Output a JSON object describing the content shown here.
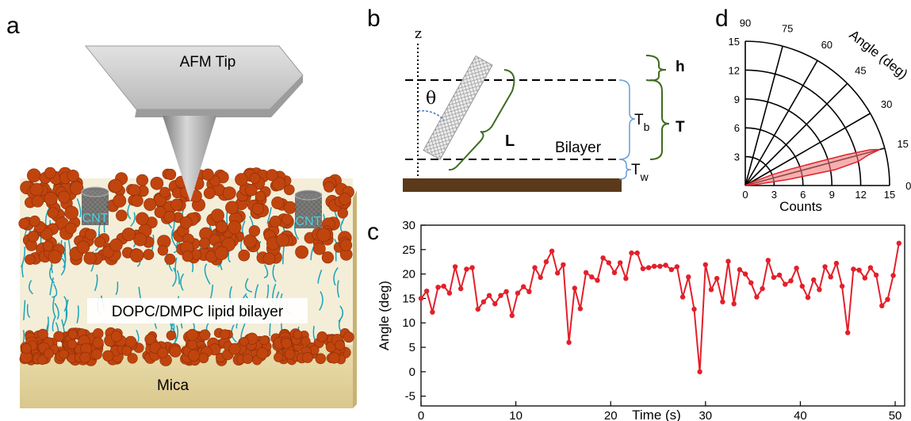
{
  "panel_a": {
    "letter": "a",
    "tip_label": "AFM Tip",
    "cnt_label_left": "CNT",
    "cnt_label_right": "CNT",
    "bilayer_label": "DOPC/DMPC lipid bilayer",
    "substrate_label": "Mica",
    "colors": {
      "headgroup": "#c0440e",
      "tail": "#1aa3b8",
      "mica": "#e6d7a3",
      "tip": "#a8a8a8"
    }
  },
  "panel_b": {
    "letter": "b",
    "z_label": "z",
    "theta_label": "θ",
    "L_label": "L",
    "bilayer_label": "Bilayer",
    "h_label": "h",
    "Tb_main": "T",
    "Tb_sub": "b",
    "T_label": "T",
    "Tw_main": "T",
    "Tw_sub": "w",
    "colors": {
      "substrate": "#5a3a1a",
      "bracket_green": "#3e6b1f",
      "bracket_blue": "#6a9bd8"
    }
  },
  "panel_c": {
    "letter": "c",
    "chart_data": {
      "type": "line",
      "xlabel": "Time (s)",
      "ylabel": "Angle (deg)",
      "xlim": [
        0,
        51
      ],
      "ylim": [
        -7,
        30
      ],
      "xticks": [
        0,
        10,
        20,
        30,
        40,
        50
      ],
      "yticks": [
        -5,
        0,
        5,
        10,
        15,
        20,
        25,
        30
      ],
      "color": "#e3202a",
      "series": [
        {
          "x": [
            0.0,
            0.6,
            1.2,
            1.8,
            2.4,
            3.0,
            3.6,
            4.2,
            4.8,
            5.4,
            6.0,
            6.6,
            7.2,
            7.8,
            8.4,
            9.0,
            9.6,
            10.2,
            10.8,
            11.4,
            12.0,
            12.6,
            13.2,
            13.8,
            14.4,
            15.0,
            15.6,
            16.2,
            16.8,
            17.4,
            18.0,
            18.6,
            19.2,
            19.8,
            20.4,
            21.0,
            21.6,
            22.2,
            22.8,
            23.4,
            24.0,
            24.6,
            25.2,
            25.8,
            26.4,
            27.0,
            27.6,
            28.2,
            28.8,
            29.4,
            30.0,
            30.6,
            31.2,
            31.8,
            32.4,
            33.0,
            33.6,
            34.2,
            34.8,
            35.4,
            36.0,
            36.6,
            37.2,
            37.8,
            38.4,
            39.0,
            39.6,
            40.2,
            40.8,
            41.4,
            42.0,
            42.6,
            43.2,
            43.8,
            44.4,
            45.0,
            45.6,
            46.2,
            46.8,
            47.4,
            48.0,
            48.6,
            49.2,
            49.8,
            50.4
          ],
          "y": [
            15,
            16.5,
            12.2,
            17.3,
            17.5,
            16.1,
            21.5,
            17,
            21,
            21.3,
            12.8,
            14.3,
            15.6,
            13.9,
            15.6,
            16.4,
            11.5,
            16.1,
            17.4,
            16.4,
            21.3,
            19.3,
            22.5,
            24.7,
            20.2,
            21.9,
            6,
            17.1,
            12.9,
            20.3,
            19.4,
            18.7,
            23.3,
            22.3,
            20.3,
            22.3,
            19.1,
            24.3,
            24.3,
            21.1,
            21.3,
            21.6,
            21.6,
            21.8,
            20.9,
            21.5,
            15.3,
            19.4,
            12.8,
            0,
            21.9,
            16.8,
            19.1,
            14.3,
            22.6,
            13.9,
            20.9,
            20,
            18.2,
            15.3,
            17,
            22.8,
            19.3,
            19.8,
            17.9,
            18.6,
            21.2,
            17.5,
            15.2,
            18.8,
            16.8,
            21.5,
            19.4,
            22.2,
            17.5,
            8,
            21,
            20.8,
            19.2,
            21.3,
            19.8,
            13.5,
            14.8,
            19.7,
            26.3
          ]
        }
      ]
    }
  },
  "panel_d": {
    "letter": "d",
    "chart_data": {
      "type": "polar",
      "xlabel": "Counts",
      "angle_label": "Angle (deg)",
      "radial_ticks": [
        0,
        3,
        6,
        9,
        12,
        15
      ],
      "angle_ticks": [
        0,
        15,
        30,
        45,
        60,
        75,
        90
      ],
      "rmax": 15,
      "color": "#e3202a",
      "fill": "#f07a7a",
      "series": [
        {
          "angle": [
            0,
            5,
            8,
            10,
            12,
            14,
            15,
            16,
            17,
            18,
            20,
            22,
            25,
            0
          ],
          "r": [
            0,
            1,
            4.5,
            9.5,
            12,
            13.2,
            14.5,
            13.5,
            11,
            8,
            5,
            3,
            1,
            0
          ]
        }
      ]
    }
  }
}
